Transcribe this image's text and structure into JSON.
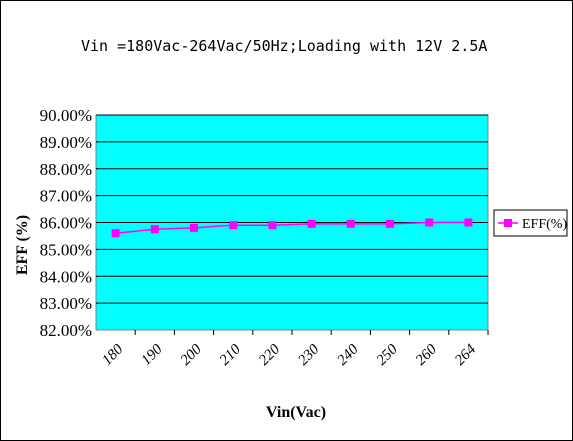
{
  "chart_data": {
    "type": "line",
    "title": "Vin =180Vac-264Vac/50Hz;Loading with 12V 2.5A",
    "xlabel": "Vin(Vac)",
    "ylabel": "EFF (%)",
    "categories": [
      "180",
      "190",
      "200",
      "210",
      "220",
      "230",
      "240",
      "250",
      "260",
      "264"
    ],
    "series": [
      {
        "name": "EFF(%)",
        "values": [
          85.6,
          85.75,
          85.8,
          85.9,
          85.9,
          85.95,
          85.95,
          85.95,
          86.0,
          86.0
        ]
      }
    ],
    "ylim": [
      82,
      90
    ],
    "yticks": [
      82,
      83,
      84,
      85,
      86,
      87,
      88,
      89,
      90
    ],
    "ytick_labels": [
      "82.00%",
      "83.00%",
      "84.00%",
      "85.00%",
      "86.00%",
      "87.00%",
      "88.00%",
      "89.00%",
      "90.00%"
    ],
    "grid": true,
    "legend_position": "right",
    "colors": {
      "plot_background": "#00ffff",
      "series_line": "#ff00ff",
      "series_marker": "#ff00ff",
      "gridline": "#000000"
    }
  }
}
